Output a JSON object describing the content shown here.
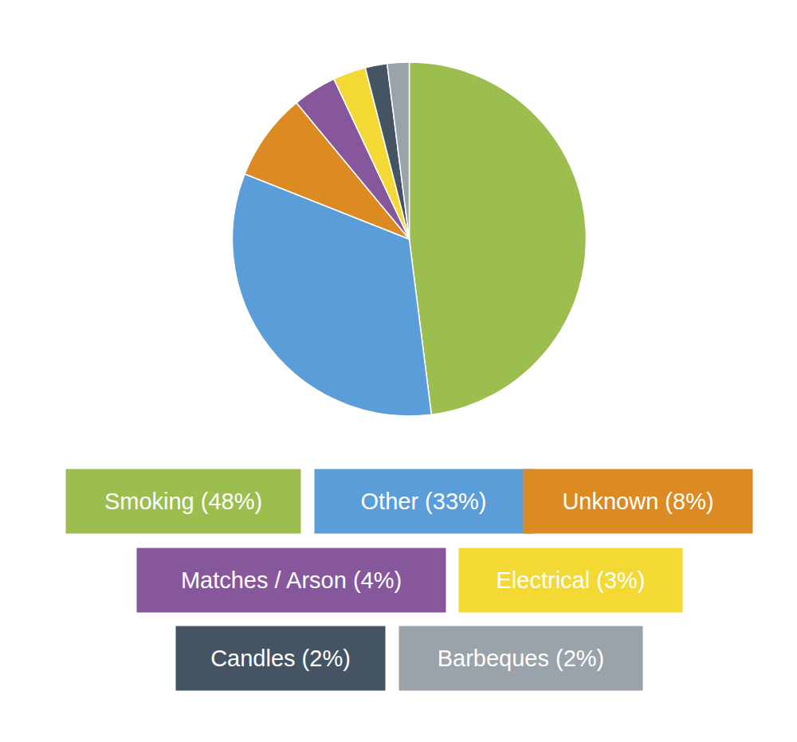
{
  "chart_data": {
    "type": "pie",
    "categories": [
      "Smoking (48%)",
      "Other (33%)",
      "Unknown (8%)",
      "Matches / Arson (4%)",
      "Electrical (3%)",
      "Candles (2%)",
      "Barbeques (2%)"
    ],
    "values": [
      48,
      33,
      8,
      4,
      3,
      2,
      2
    ],
    "colors": [
      "#9bbe4f",
      "#5a9dd8",
      "#dc8a22",
      "#87579b",
      "#f4d935",
      "#455462",
      "#9aa2aa"
    ]
  }
}
